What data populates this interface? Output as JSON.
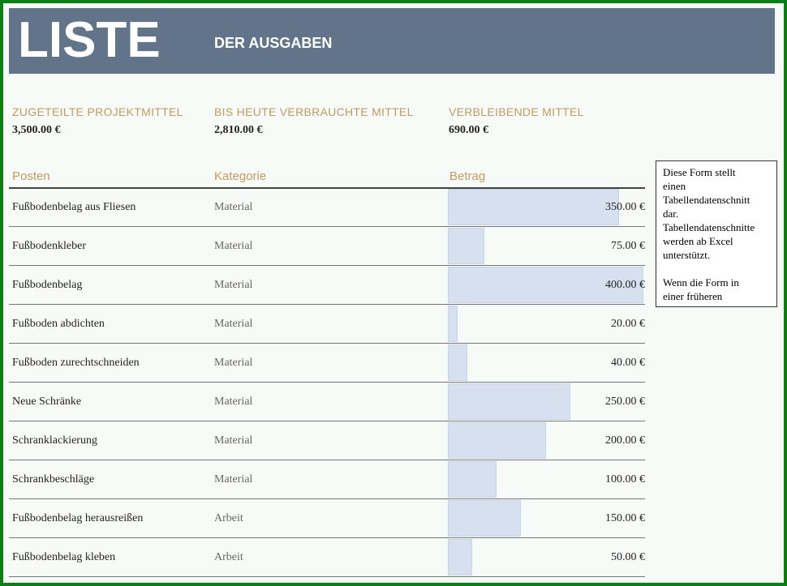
{
  "header": {
    "title": "LISTE",
    "subtitle": "DER AUSGABEN"
  },
  "summary": [
    {
      "label": "ZUGETEILTE PROJEKTMITTEL",
      "value": "3,500.00 €"
    },
    {
      "label": "BIS HEUTE VERBRAUCHTE MITTEL",
      "value": "2,810.00 €"
    },
    {
      "label": "VERBLEIBENDE MITTEL",
      "value": "690.00 €"
    }
  ],
  "table": {
    "columns": [
      "Posten",
      "Kategorie",
      "Betrag"
    ],
    "rows": [
      {
        "item": "Fußbodenbelag aus Fliesen",
        "category": "Material",
        "amount": 350,
        "amount_label": "350.00 €"
      },
      {
        "item": "Fußbodenkleber",
        "category": "Material",
        "amount": 75,
        "amount_label": "75.00 €"
      },
      {
        "item": "Fußbodenbelag",
        "category": "Material",
        "amount": 400,
        "amount_label": "400.00 €"
      },
      {
        "item": "Fußboden abdichten",
        "category": "Material",
        "amount": 20,
        "amount_label": "20.00 €"
      },
      {
        "item": "Fußboden zurechtschneiden",
        "category": "Material",
        "amount": 40,
        "amount_label": "40.00 €"
      },
      {
        "item": "Neue Schränke",
        "category": "Material",
        "amount": 250,
        "amount_label": "250.00 €"
      },
      {
        "item": "Schranklackierung",
        "category": "Material",
        "amount": 200,
        "amount_label": "200.00 €"
      },
      {
        "item": "Schrankbeschläge",
        "category": "Material",
        "amount": 100,
        "amount_label": "100.00 €"
      },
      {
        "item": "Fußbodenbelag herausreißen",
        "category": "Arbeit",
        "amount": 150,
        "amount_label": "150.00 €"
      },
      {
        "item": "Fußbodenbelag kleben",
        "category": "Arbeit",
        "amount": 50,
        "amount_label": "50.00 €"
      }
    ]
  },
  "comment": {
    "paragraphs": [
      [
        "Diese Form stellt",
        "einen",
        "Tabellendatenschnitt",
        "dar.",
        "Tabellendatenschnitte",
        "werden ab Excel",
        "unterstützt."
      ],
      [
        "Wenn die Form in",
        "einer früheren"
      ]
    ]
  }
}
